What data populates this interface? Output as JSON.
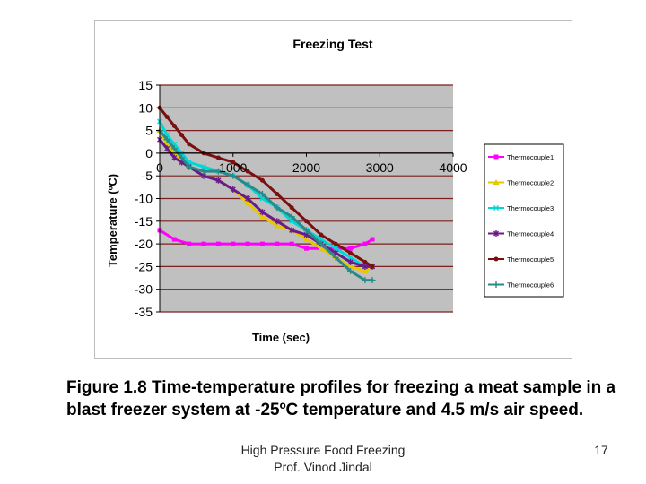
{
  "colors": {
    "plot_background": "#c0c0c0",
    "gridline": "#7b1f1f"
  },
  "chart_data": {
    "type": "line",
    "title": "Freezing Test",
    "xlabel": "Time (sec)",
    "ylabel": "Temperature (ºC)",
    "xlim": [
      0,
      4000
    ],
    "ylim": [
      -35,
      15
    ],
    "x_ticks": [
      "0",
      "1000",
      "2000",
      "3000",
      "4000"
    ],
    "y_ticks": [
      "15",
      "10",
      "5",
      "0",
      "-5",
      "-10",
      "-15",
      "-20",
      "-25",
      "-30",
      "-35"
    ],
    "grid": "horizontal",
    "legend_position": "right",
    "series": [
      {
        "name": "Thermocouple1",
        "color": "#ff00ff",
        "marker": "square",
        "points": [
          [
            0,
            -17
          ],
          [
            200,
            -19
          ],
          [
            400,
            -20
          ],
          [
            600,
            -20
          ],
          [
            800,
            -20
          ],
          [
            1000,
            -20
          ],
          [
            1200,
            -20
          ],
          [
            1400,
            -20
          ],
          [
            1600,
            -20
          ],
          [
            1800,
            -20
          ],
          [
            2000,
            -21
          ],
          [
            2200,
            -21
          ],
          [
            2400,
            -21
          ],
          [
            2600,
            -21
          ],
          [
            2800,
            -20
          ],
          [
            2900,
            -19
          ]
        ]
      },
      {
        "name": "Thermocouple2",
        "color": "#e6c800",
        "marker": "triangle",
        "points": [
          [
            0,
            5
          ],
          [
            100,
            2
          ],
          [
            200,
            0
          ],
          [
            300,
            -2
          ],
          [
            400,
            -3
          ],
          [
            600,
            -5
          ],
          [
            800,
            -6
          ],
          [
            1000,
            -8
          ],
          [
            1200,
            -11
          ],
          [
            1400,
            -14
          ],
          [
            1600,
            -16
          ],
          [
            1800,
            -17
          ],
          [
            2000,
            -19
          ],
          [
            2200,
            -21
          ],
          [
            2400,
            -23
          ],
          [
            2600,
            -25
          ],
          [
            2800,
            -26
          ],
          [
            2900,
            -25
          ]
        ]
      },
      {
        "name": "Thermocouple3",
        "color": "#00d8d8",
        "marker": "x",
        "points": [
          [
            0,
            7
          ],
          [
            100,
            4
          ],
          [
            200,
            2
          ],
          [
            300,
            0
          ],
          [
            400,
            -2
          ],
          [
            600,
            -3
          ],
          [
            800,
            -4
          ],
          [
            1000,
            -5
          ],
          [
            1200,
            -7
          ],
          [
            1400,
            -10
          ],
          [
            1600,
            -12
          ],
          [
            1800,
            -15
          ],
          [
            2000,
            -17
          ],
          [
            2200,
            -19
          ],
          [
            2400,
            -21
          ],
          [
            2600,
            -23
          ],
          [
            2800,
            -25
          ],
          [
            2900,
            -25
          ]
        ]
      },
      {
        "name": "Thermocouple4",
        "color": "#6a1b8a",
        "marker": "asterisk",
        "points": [
          [
            0,
            3
          ],
          [
            100,
            1
          ],
          [
            200,
            -1
          ],
          [
            300,
            -2
          ],
          [
            400,
            -3
          ],
          [
            600,
            -5
          ],
          [
            800,
            -6
          ],
          [
            1000,
            -8
          ],
          [
            1200,
            -10
          ],
          [
            1400,
            -13
          ],
          [
            1600,
            -15
          ],
          [
            1800,
            -17
          ],
          [
            2000,
            -18
          ],
          [
            2200,
            -20
          ],
          [
            2400,
            -22
          ],
          [
            2600,
            -24
          ],
          [
            2800,
            -25
          ],
          [
            2900,
            -25
          ]
        ]
      },
      {
        "name": "Thermocouple5",
        "color": "#7b1010",
        "marker": "circle",
        "points": [
          [
            0,
            10
          ],
          [
            100,
            8
          ],
          [
            200,
            6
          ],
          [
            300,
            4
          ],
          [
            400,
            2
          ],
          [
            600,
            0
          ],
          [
            800,
            -1
          ],
          [
            1000,
            -2
          ],
          [
            1200,
            -4
          ],
          [
            1400,
            -6
          ],
          [
            1600,
            -9
          ],
          [
            1800,
            -12
          ],
          [
            2000,
            -15
          ],
          [
            2200,
            -18
          ],
          [
            2400,
            -20
          ],
          [
            2600,
            -22
          ],
          [
            2800,
            -24
          ],
          [
            2900,
            -25
          ]
        ]
      },
      {
        "name": "Thermocouple6",
        "color": "#2a8a8a",
        "marker": "plus",
        "points": [
          [
            0,
            5
          ],
          [
            100,
            3
          ],
          [
            200,
            1
          ],
          [
            300,
            -1
          ],
          [
            400,
            -3
          ],
          [
            600,
            -4
          ],
          [
            800,
            -4
          ],
          [
            1000,
            -5
          ],
          [
            1200,
            -7
          ],
          [
            1400,
            -9
          ],
          [
            1600,
            -12
          ],
          [
            1800,
            -14
          ],
          [
            2000,
            -17
          ],
          [
            2200,
            -20
          ],
          [
            2400,
            -23
          ],
          [
            2600,
            -26
          ],
          [
            2800,
            -28
          ],
          [
            2900,
            -28
          ]
        ]
      }
    ]
  },
  "caption": "Figure 1.8 Time-temperature profiles for freezing a meat sample in a blast freezer system at -25ºC temperature and 4.5 m/s air speed.",
  "footer": {
    "title": "High Pressure Food Freezing",
    "author": "Prof. Vinod Jindal",
    "page_number": "17"
  }
}
